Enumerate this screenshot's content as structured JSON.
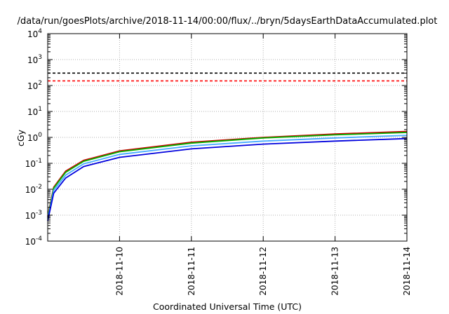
{
  "chart_data": {
    "type": "line",
    "title": "/data/run/goesPlots/archive/2018-11-14/00:00/flux/../bryn/5daysEarthDataAccumulated.plot",
    "xlabel": "Coordinated Universal Time (UTC)",
    "ylabel": "cGy",
    "x_range": [
      "2018-11-09T00:00",
      "2018-11-14T00:00"
    ],
    "x_ticks": [
      "2018-11-10",
      "2018-11-11",
      "2018-11-12",
      "2018-11-13",
      "2018-11-14"
    ],
    "y_scale": "log",
    "ylim": [
      0.0001,
      10000
    ],
    "y_ticks": [
      {
        "base": "10",
        "exp": "-4",
        "value": 0.0001
      },
      {
        "base": "10",
        "exp": "-3",
        "value": 0.001
      },
      {
        "base": "10",
        "exp": "-2",
        "value": 0.01
      },
      {
        "base": "10",
        "exp": "-1",
        "value": 0.1
      },
      {
        "base": "10",
        "exp": "0",
        "value": 1
      },
      {
        "base": "10",
        "exp": "1",
        "value": 10
      },
      {
        "base": "10",
        "exp": "2",
        "value": 100
      },
      {
        "base": "10",
        "exp": "3",
        "value": 1000
      },
      {
        "base": "10",
        "exp": "4",
        "value": 10000
      }
    ],
    "grid": true,
    "reference_lines": [
      {
        "value": 300,
        "color": "#000000",
        "style": "dashed"
      },
      {
        "value": 150,
        "color": "#ff0000",
        "style": "dashed"
      }
    ],
    "series": [
      {
        "color": "#cc0000",
        "x": [
          "2018-11-09T00:00",
          "2018-11-09T02:00",
          "2018-11-09T06:00",
          "2018-11-09T12:00",
          "2018-11-10T00:00",
          "2018-11-11T00:00",
          "2018-11-12T00:00",
          "2018-11-13T00:00",
          "2018-11-14T00:00"
        ],
        "y": [
          0.0009,
          0.012,
          0.05,
          0.13,
          0.3,
          0.65,
          1.0,
          1.35,
          1.7
        ]
      },
      {
        "color": "#00b000",
        "x": [
          "2018-11-09T00:00",
          "2018-11-09T02:00",
          "2018-11-09T06:00",
          "2018-11-09T12:00",
          "2018-11-10T00:00",
          "2018-11-11T00:00",
          "2018-11-12T00:00",
          "2018-11-13T00:00",
          "2018-11-14T00:00"
        ],
        "y": [
          0.0008,
          0.011,
          0.045,
          0.12,
          0.28,
          0.6,
          0.95,
          1.25,
          1.55
        ]
      },
      {
        "color": "#44aaff",
        "x": [
          "2018-11-09T00:00",
          "2018-11-09T02:00",
          "2018-11-09T06:00",
          "2018-11-09T12:00",
          "2018-11-10T00:00",
          "2018-11-11T00:00",
          "2018-11-12T00:00",
          "2018-11-13T00:00",
          "2018-11-14T00:00"
        ],
        "y": [
          0.0007,
          0.009,
          0.035,
          0.095,
          0.22,
          0.47,
          0.72,
          0.95,
          1.2
        ]
      },
      {
        "color": "#0000dd",
        "x": [
          "2018-11-09T00:00",
          "2018-11-09T02:00",
          "2018-11-09T06:00",
          "2018-11-09T12:00",
          "2018-11-10T00:00",
          "2018-11-11T00:00",
          "2018-11-12T00:00",
          "2018-11-13T00:00",
          "2018-11-14T00:00"
        ],
        "y": [
          0.0006,
          0.007,
          0.027,
          0.075,
          0.17,
          0.36,
          0.55,
          0.72,
          0.9
        ]
      }
    ]
  }
}
